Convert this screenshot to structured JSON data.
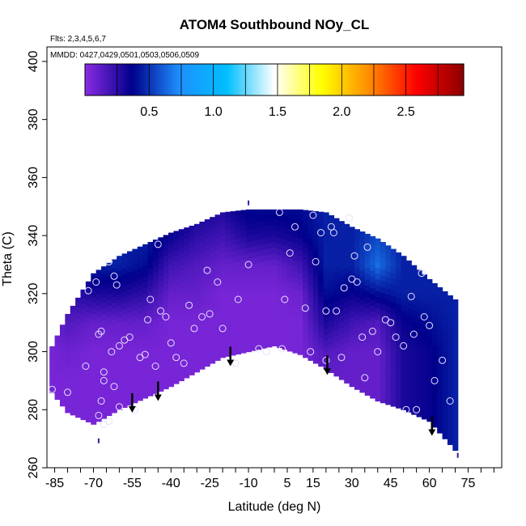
{
  "chart_data": {
    "type": "heatmap",
    "title": "ATOM4 Southbound NOy_CL",
    "flights_note": "Flts: 2,3,4,5,6,7",
    "dates_note": "MMDD: 0427,0429,0501,0503,0506,0509",
    "xlabel": "Latitude (deg N)",
    "ylabel": "Theta (C)",
    "xlim": [
      -88,
      88
    ],
    "ylim": [
      260,
      405
    ],
    "x_ticks": [
      -85,
      -70,
      -55,
      -40,
      -25,
      -10,
      5,
      15,
      30,
      45,
      60,
      75
    ],
    "x_minor_step": 5,
    "y_ticks": [
      260,
      280,
      300,
      320,
      340,
      360,
      380,
      400
    ],
    "colorbar": {
      "range": [
        0,
        2.95
      ],
      "ticks": [
        0.5,
        1.0,
        1.5,
        2.0,
        2.5
      ],
      "tick_labels": [
        "0.5",
        "1.0",
        "1.5",
        "2.0",
        "2.5"
      ],
      "colors": [
        "#8a2be2",
        "#00008b",
        "#1e90ff",
        "#00bfff",
        "#ffffff",
        "#ffff00",
        "#ff8c00",
        "#ff0000",
        "#8b0000"
      ]
    },
    "field": {
      "lat": [
        -87,
        -80,
        -70,
        -60,
        -50,
        -40,
        -30,
        -20,
        -10,
        0,
        10,
        20,
        30,
        40,
        50,
        60,
        70
      ],
      "top_theta": [
        300,
        313,
        327,
        333,
        337,
        341,
        344,
        348,
        349,
        349,
        349,
        348,
        343,
        339,
        333,
        325,
        318
      ],
      "bottom_theta": [
        287,
        279,
        275,
        280,
        284,
        288,
        293,
        298,
        300,
        302,
        299,
        294,
        288,
        283,
        280,
        276,
        266
      ],
      "theta_levels": [
        270,
        280,
        290,
        300,
        310,
        320,
        330,
        340,
        350
      ],
      "values": [
        [
          0.05,
          0.05,
          0.05,
          0.05,
          0.08,
          0.1,
          0.1,
          0.1,
          0.1
        ],
        [
          0.05,
          0.05,
          0.05,
          0.08,
          0.15,
          0.25,
          0.3,
          0.3,
          0.3
        ],
        [
          0.05,
          0.05,
          0.05,
          0.05,
          0.1,
          0.3,
          0.45,
          0.45,
          0.45
        ],
        [
          0.05,
          0.05,
          0.05,
          0.05,
          0.1,
          0.3,
          0.45,
          0.45,
          0.45
        ],
        [
          0.05,
          0.05,
          0.05,
          0.05,
          0.1,
          0.25,
          0.4,
          0.45,
          0.45
        ],
        [
          0.05,
          0.05,
          0.05,
          0.05,
          0.05,
          0.1,
          0.2,
          0.35,
          0.4
        ],
        [
          0.05,
          0.05,
          0.05,
          0.05,
          0.05,
          0.1,
          0.15,
          0.25,
          0.35
        ],
        [
          0.05,
          0.05,
          0.05,
          0.05,
          0.05,
          0.05,
          0.1,
          0.2,
          0.3
        ],
        [
          0.05,
          0.05,
          0.05,
          0.05,
          0.05,
          0.05,
          0.1,
          0.3,
          0.4
        ],
        [
          0.05,
          0.05,
          0.05,
          0.05,
          0.05,
          0.05,
          0.1,
          0.3,
          0.4
        ],
        [
          0.05,
          0.05,
          0.05,
          0.05,
          0.05,
          0.08,
          0.2,
          0.35,
          0.4
        ],
        [
          0.1,
          0.1,
          0.1,
          0.15,
          0.3,
          0.4,
          0.45,
          0.45,
          0.45
        ],
        [
          0.1,
          0.1,
          0.1,
          0.1,
          0.2,
          0.35,
          0.45,
          0.45,
          0.45
        ],
        [
          0.1,
          0.1,
          0.1,
          0.1,
          0.15,
          0.4,
          0.65,
          0.55,
          0.45
        ],
        [
          0.3,
          0.3,
          0.3,
          0.3,
          0.35,
          0.45,
          0.45,
          0.45,
          0.45
        ],
        [
          0.35,
          0.35,
          0.35,
          0.35,
          0.4,
          0.45,
          0.45,
          0.45,
          0.45
        ],
        [
          0.45,
          0.45,
          0.45,
          0.45,
          0.45,
          0.45,
          0.45,
          0.45,
          0.45
        ]
      ]
    },
    "samples": [
      [
        -86,
        287
      ],
      [
        -80,
        286
      ],
      [
        -73,
        295
      ],
      [
        -72,
        321
      ],
      [
        -69,
        324
      ],
      [
        -68,
        306
      ],
      [
        -67,
        307
      ],
      [
        -66,
        293
      ],
      [
        -66,
        290
      ],
      [
        -67,
        283
      ],
      [
        -68,
        278
      ],
      [
        -66,
        275
      ],
      [
        -64,
        276
      ],
      [
        -63,
        300
      ],
      [
        -62,
        288
      ],
      [
        -60,
        302
      ],
      [
        -60,
        281
      ],
      [
        -64,
        331
      ],
      [
        -62,
        326
      ],
      [
        -61,
        323
      ],
      [
        -58,
        304
      ],
      [
        -56,
        305
      ],
      [
        -54,
        280
      ],
      [
        -52,
        298
      ],
      [
        -50,
        299
      ],
      [
        -49,
        311
      ],
      [
        -48,
        318
      ],
      [
        -46,
        295
      ],
      [
        -45,
        337
      ],
      [
        -44,
        314
      ],
      [
        -42,
        312
      ],
      [
        -40,
        303
      ],
      [
        -38,
        298
      ],
      [
        -35,
        296
      ],
      [
        -33,
        316
      ],
      [
        -31,
        308
      ],
      [
        -28,
        312
      ],
      [
        -25,
        313
      ],
      [
        -26,
        328
      ],
      [
        -22,
        324
      ],
      [
        -20,
        308
      ],
      [
        -15,
        296
      ],
      [
        -14,
        318
      ],
      [
        -10,
        330
      ],
      [
        -6,
        301
      ],
      [
        -3,
        300
      ],
      [
        2,
        348
      ],
      [
        3,
        301
      ],
      [
        4,
        318
      ],
      [
        6,
        334
      ],
      [
        8,
        343
      ],
      [
        12,
        315
      ],
      [
        14,
        300
      ],
      [
        15,
        347
      ],
      [
        16,
        331
      ],
      [
        18,
        341
      ],
      [
        20,
        314
      ],
      [
        20,
        297
      ],
      [
        22,
        343
      ],
      [
        23,
        341
      ],
      [
        24,
        314
      ],
      [
        26,
        298
      ],
      [
        27,
        322
      ],
      [
        29,
        346
      ],
      [
        30,
        325
      ],
      [
        31,
        333
      ],
      [
        32,
        324
      ],
      [
        34,
        305
      ],
      [
        35,
        291
      ],
      [
        36,
        336
      ],
      [
        38,
        307
      ],
      [
        40,
        300
      ],
      [
        43,
        311
      ],
      [
        45,
        310
      ],
      [
        47,
        305
      ],
      [
        50,
        302
      ],
      [
        51,
        280
      ],
      [
        53,
        319
      ],
      [
        54,
        306
      ],
      [
        55,
        280
      ],
      [
        57,
        327
      ],
      [
        58,
        312
      ],
      [
        60,
        309
      ],
      [
        62,
        290
      ],
      [
        65,
        297
      ],
      [
        68,
        283
      ]
    ],
    "arrows": [
      {
        "lat": -55.0,
        "theta_tip": 279
      },
      {
        "lat": -45.0,
        "theta_tip": 283
      },
      {
        "lat": -17.0,
        "theta_tip": 295
      },
      {
        "lat": 20.5,
        "theta_tip": 292
      },
      {
        "lat": 61.0,
        "theta_tip": 271
      }
    ],
    "markers": [
      {
        "lat": -10,
        "theta": 351
      },
      {
        "lat": -68,
        "theta": 269
      },
      {
        "lat": 71,
        "theta": 264
      }
    ]
  }
}
